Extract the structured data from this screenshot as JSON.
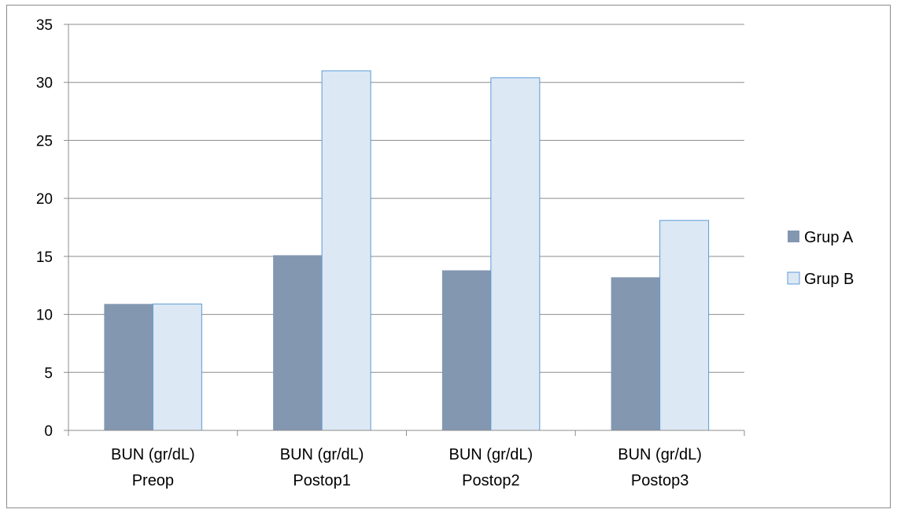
{
  "chart_data": {
    "type": "bar",
    "categories": [
      [
        "BUN (gr/dL)",
        "Preop"
      ],
      [
        "BUN (gr/dL)",
        "Postop1"
      ],
      [
        "BUN (gr/dL)",
        "Postop2"
      ],
      [
        "BUN (gr/dL)",
        "Postop3"
      ]
    ],
    "series": [
      {
        "name": "Grup A",
        "values": [
          10.9,
          15.1,
          13.8,
          13.2
        ],
        "color": "#8497b0"
      },
      {
        "name": "Grup B",
        "values": [
          10.9,
          31.0,
          30.4,
          18.1
        ],
        "color": "#dde8f5",
        "stroke": "#5b9bd5"
      }
    ],
    "ylim": [
      0,
      35
    ],
    "yticks": [
      0,
      5,
      10,
      15,
      20,
      25,
      30,
      35
    ],
    "grid": true,
    "legend": "right"
  }
}
